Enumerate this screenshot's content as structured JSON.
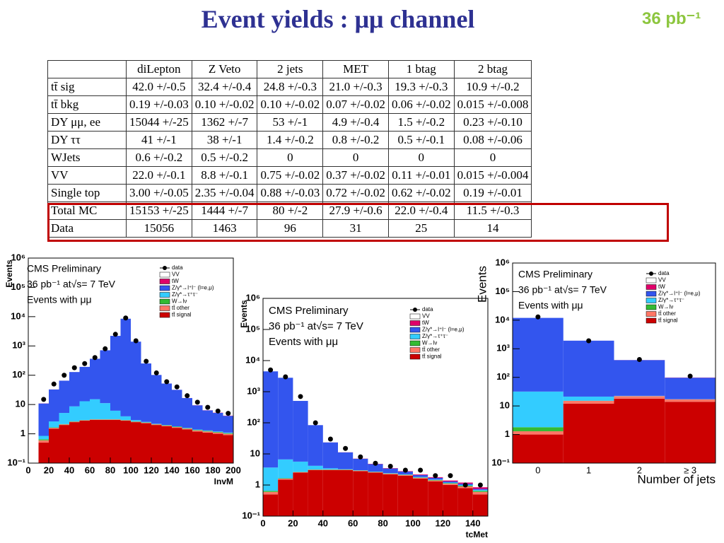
{
  "header": {
    "title": "Event yields : μμ  channel",
    "lumi": "36 pb⁻¹"
  },
  "table": {
    "columns": [
      "diLepton",
      "Z Veto",
      "2 jets",
      "MET",
      "1 btag",
      "2 btag"
    ],
    "rows": [
      [
        "tt̄ sig",
        "42.0 +/-0.5",
        "32.4 +/-0.4",
        "24.8 +/-0.3",
        "21.0 +/-0.3",
        "19.3 +/-0.3",
        "10.9 +/-0.2"
      ],
      [
        "tt̄ bkg",
        "0.19 +/-0.03",
        "0.10 +/-0.02",
        "0.10 +/-0.02",
        "0.07 +/-0.02",
        "0.06 +/-0.02",
        "0.015 +/-0.008"
      ],
      [
        "DY μμ, ee",
        "15044 +/-25",
        "1362 +/-7",
        "53 +/-1",
        "4.9 +/-0.4",
        "1.5 +/-0.2",
        "0.23 +/-0.10"
      ],
      [
        "DY ττ",
        "41 +/-1",
        "38 +/-1",
        "1.4 +/-0.2",
        "0.8 +/-0.2",
        "0.5 +/-0.1",
        "0.08 +/-0.06"
      ],
      [
        "WJets",
        "0.6 +/-0.2",
        "0.5 +/-0.2",
        "0",
        "0",
        "0",
        "0"
      ],
      [
        "VV",
        "22.0 +/-0.1",
        "8.8 +/-0.1",
        "0.75 +/-0.02",
        "0.37 +/-0.02",
        "0.11 +/-0.01",
        "0.015 +/-0.004"
      ],
      [
        "Single top",
        "3.00 +/-0.05",
        "2.35 +/-0.04",
        "0.88 +/-0.03",
        "0.72 +/-0.02",
        "0.62 +/-0.02",
        "0.19 +/-0.01"
      ],
      [
        "Total MC",
        "15153 +/-25",
        "1444 +/-7",
        "80 +/-2",
        "27.9 +/-0.6",
        "22.0 +/-0.4",
        "11.5 +/-0.3"
      ],
      [
        "Data",
        "15056",
        "1463",
        "96",
        "31",
        "25",
        "14"
      ]
    ]
  },
  "chart_data": [
    {
      "type": "histogram",
      "texts": [
        "CMS Preliminary",
        "36 pb⁻¹ at√s= 7 TeV",
        "Events with μμ"
      ],
      "ylabel": "Events",
      "xlabel": "InvM",
      "log_y": true,
      "bins": [
        10,
        20,
        30,
        40,
        50,
        60,
        70,
        80,
        90,
        100,
        110,
        120,
        130,
        140,
        150,
        160,
        170,
        180,
        190,
        200
      ],
      "xlim": [
        0,
        200
      ],
      "xticks": [
        0,
        20,
        40,
        60,
        80,
        100,
        120,
        140,
        160,
        180,
        200
      ],
      "ylim": [
        0.1,
        1000000
      ],
      "yticks": [
        {
          "value": 0.1,
          "label": "10⁻¹"
        },
        1,
        10,
        {
          "value": 100,
          "label": "10²"
        },
        {
          "value": 1000,
          "label": "10³"
        },
        {
          "value": 10000,
          "label": "10⁴"
        },
        {
          "value": 100000,
          "label": "10⁵"
        },
        {
          "value": 1000000,
          "label": "10⁶"
        }
      ],
      "data": {
        "name": "data",
        "color": "#000000",
        "values": [
          15,
          50,
          100,
          180,
          250,
          400,
          800,
          2500,
          9000,
          1500,
          300,
          120,
          60,
          40,
          20,
          12,
          8,
          6,
          5
        ]
      },
      "series": [
        {
          "name": "VV",
          "color": "#ffffff",
          "values": [
            0.1,
            0.1,
            0.1,
            0.1,
            0.1,
            0.1,
            0.1,
            0.1,
            0.1,
            0.1,
            0.1,
            0.1,
            0.1,
            0.1,
            0.1,
            0.1,
            0.1,
            0.1,
            0.1
          ]
        },
        {
          "name": "tW",
          "color": "#e0006a",
          "values": [
            0.1,
            0.1,
            0.1,
            0.1,
            0.1,
            0.1,
            0.1,
            0.1,
            0.1,
            0.1,
            0.1,
            0.1,
            0.1,
            0.1,
            0.1,
            0.1,
            0.1,
            0.1,
            0.1
          ]
        },
        {
          "name": "Z/γ*→l⁺l⁻ (l=e,μ)",
          "color": "#3355ee",
          "values": [
            10,
            30,
            60,
            120,
            180,
            350,
            700,
            2200,
            8500,
            1400,
            250,
            100,
            50,
            30,
            15,
            8,
            5,
            4,
            3
          ]
        },
        {
          "name": "Z/γ*→τ⁺τ⁻",
          "color": "#33ccff",
          "values": [
            0.2,
            1,
            3,
            6,
            10,
            12,
            8,
            3,
            1,
            0.3,
            0.1,
            0.05,
            0.05,
            0.05,
            0.05,
            0.05,
            0.05,
            0.05,
            0.05
          ]
        },
        {
          "name": "W→lν",
          "color": "#33bb33",
          "values": [
            0.05,
            0.05,
            0.05,
            0.05,
            0.05,
            0.05,
            0.05,
            0.05,
            0.05,
            0.05,
            0.05,
            0.05,
            0.05,
            0.05,
            0.05,
            0.05,
            0.05,
            0.05,
            0.05
          ]
        },
        {
          "name": "tt̄ other",
          "color": "#ff7766",
          "values": [
            0.1,
            0.1,
            0.1,
            0.1,
            0.1,
            0.1,
            0.1,
            0.1,
            0.1,
            0.1,
            0.1,
            0.1,
            0.1,
            0.1,
            0.1,
            0.1,
            0.1,
            0.1,
            0.1
          ]
        },
        {
          "name": "tt̄ signal",
          "color": "#cc0000",
          "values": [
            0.5,
            1.5,
            2,
            2.5,
            2.8,
            3,
            3,
            3,
            2.8,
            2.5,
            2.3,
            2,
            1.8,
            1.6,
            1.4,
            1.2,
            1.1,
            1,
            0.9
          ]
        }
      ]
    },
    {
      "type": "histogram",
      "texts": [
        "CMS Preliminary",
        "36 pb⁻¹ at√s= 7 TeV",
        "Events with μμ"
      ],
      "ylabel": "Events",
      "xlabel": "tcMet",
      "log_y": true,
      "bins": [
        0,
        10,
        20,
        30,
        40,
        50,
        60,
        70,
        80,
        90,
        100,
        110,
        120,
        130,
        140,
        150
      ],
      "xlim": [
        0,
        150
      ],
      "xticks": [
        0,
        20,
        40,
        60,
        80,
        100,
        120,
        140
      ],
      "ylim": [
        0.1,
        1000000
      ],
      "yticks": [
        {
          "value": 0.1,
          "label": "10⁻¹"
        },
        1,
        10,
        {
          "value": 100,
          "label": "10²"
        },
        {
          "value": 1000,
          "label": "10³"
        },
        {
          "value": 10000,
          "label": "10⁴"
        },
        {
          "value": 100000,
          "label": "10⁵"
        },
        {
          "value": 1000000,
          "label": "10⁶"
        }
      ],
      "data": {
        "name": "data",
        "color": "#000000",
        "values": [
          5000,
          3000,
          700,
          100,
          30,
          15,
          8,
          5,
          4,
          3,
          3,
          2,
          2,
          1,
          1
        ]
      },
      "series": [
        {
          "name": "VV",
          "color": "#ffffff",
          "values": [
            0.1,
            0.1,
            0.1,
            0.1,
            0.1,
            0.1,
            0.1,
            0.1,
            0.1,
            0.1,
            0.1,
            0.1,
            0.1,
            0.1,
            0.1
          ]
        },
        {
          "name": "tW",
          "color": "#e0006a",
          "values": [
            0.1,
            0.1,
            0.1,
            0.1,
            0.1,
            0.1,
            0.1,
            0.1,
            0.1,
            0.1,
            0.1,
            0.1,
            0.1,
            0.1,
            0.1
          ]
        },
        {
          "name": "Z/γ*→l⁺l⁻ (l=e,μ)",
          "color": "#3355ee",
          "values": [
            4500,
            2800,
            500,
            80,
            20,
            8,
            4,
            2,
            1,
            0.5,
            0.3,
            0.2,
            0.1,
            0.1,
            0.05
          ]
        },
        {
          "name": "Z/γ*→τ⁺τ⁻",
          "color": "#33ccff",
          "values": [
            3,
            5,
            3,
            1,
            0.3,
            0.1,
            0.05,
            0.05,
            0.05,
            0.05,
            0.05,
            0.05,
            0.05,
            0.05,
            0.05
          ]
        },
        {
          "name": "W→lν",
          "color": "#33bb33",
          "values": [
            0.05,
            0.05,
            0.05,
            0.05,
            0.05,
            0.05,
            0.05,
            0.05,
            0.05,
            0.05,
            0.05,
            0.05,
            0.05,
            0.05,
            0.05
          ]
        },
        {
          "name": "tt̄ other",
          "color": "#ff7766",
          "values": [
            0.1,
            0.1,
            0.1,
            0.1,
            0.1,
            0.1,
            0.1,
            0.1,
            0.1,
            0.1,
            0.1,
            0.1,
            0.1,
            0.1,
            0.1
          ]
        },
        {
          "name": "tt̄ signal",
          "color": "#cc0000",
          "values": [
            0.5,
            1.5,
            2.5,
            3,
            3,
            3,
            2.8,
            2.5,
            2.2,
            2,
            1.6,
            1.3,
            1,
            0.8,
            0.5
          ]
        }
      ]
    },
    {
      "type": "bar",
      "texts": [
        "CMS Preliminary",
        "36 pb⁻¹ at√s= 7 TeV",
        "Events with μμ"
      ],
      "ylabel": "Events",
      "xlabel": "Number of jets",
      "log_y": true,
      "categories": [
        "0",
        "1",
        "2",
        "≥ 3"
      ],
      "ylim": [
        0.1,
        1000000
      ],
      "yticks": [
        {
          "value": 0.1,
          "label": "10⁻¹"
        },
        1,
        10,
        {
          "value": 100,
          "label": "10²"
        },
        {
          "value": 1000,
          "label": "10³"
        },
        {
          "value": 10000,
          "label": "10⁴"
        },
        {
          "value": 100000,
          "label": "10⁵"
        },
        {
          "value": 1000000,
          "label": "10⁶"
        }
      ],
      "data": {
        "name": "data",
        "color": "#000000",
        "values": [
          13000,
          1900,
          420,
          110
        ]
      },
      "series": [
        {
          "name": "VV",
          "color": "#ffffff",
          "values": [
            0.5,
            1,
            2,
            3
          ]
        },
        {
          "name": "tW",
          "color": "#e0006a",
          "values": [
            0.3,
            2,
            3,
            2
          ]
        },
        {
          "name": "Z/γ*→l⁺l⁻ (l=e,μ)",
          "color": "#3355ee",
          "values": [
            12000,
            1900,
            380,
            80
          ]
        },
        {
          "name": "Z/γ*→τ⁺τ⁻",
          "color": "#33ccff",
          "values": [
            30,
            6,
            0.5,
            0.2
          ]
        },
        {
          "name": "W→lν",
          "color": "#33bb33",
          "values": [
            0.5,
            0.2,
            0.05,
            0.05
          ]
        },
        {
          "name": "tt̄ other",
          "color": "#ff7766",
          "values": [
            0.3,
            3,
            4,
            3
          ]
        },
        {
          "name": "tt̄ signal",
          "color": "#cc0000",
          "values": [
            1,
            12,
            18,
            14
          ]
        }
      ]
    }
  ]
}
